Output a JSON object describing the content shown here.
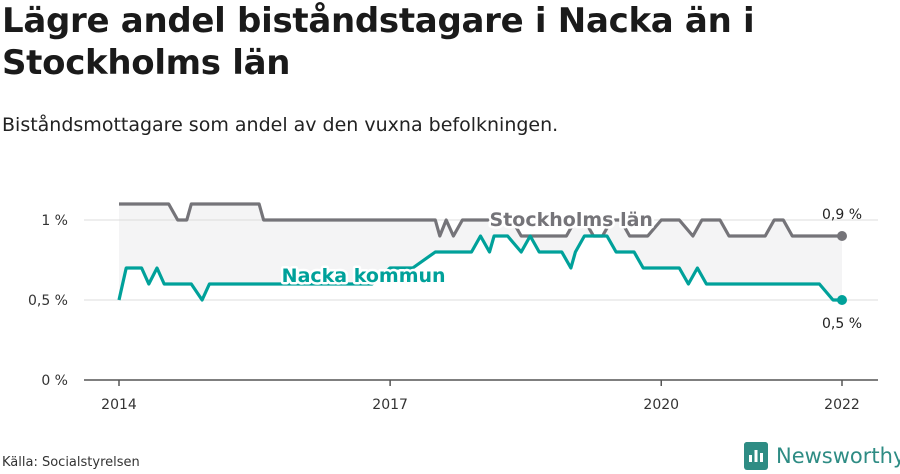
{
  "title": "Lägre andel biståndstagare i Nacka än i Stockholms län",
  "subtitle": "Biståndsmottagare som andel av den vuxna befolkningen.",
  "source": "Källa: Socialstyrelsen",
  "brand": {
    "name": "Newsworthy",
    "icon": "newsworthy-logo-icon",
    "color": "#2e8c84"
  },
  "chart_data": {
    "type": "line",
    "ylim": [
      0,
      1.25
    ],
    "xlim": [
      2014,
      2022.4
    ],
    "y_ticks": [
      {
        "value": 0,
        "label": "0 %"
      },
      {
        "value": 0.5,
        "label": "0,5 %"
      },
      {
        "value": 1.0,
        "label": "1 %"
      }
    ],
    "x_ticks": [
      {
        "value": 2014,
        "label": "2014"
      },
      {
        "value": 2017,
        "label": "2017"
      },
      {
        "value": 2020,
        "label": "2020"
      },
      {
        "value": 2022,
        "label": "2022"
      }
    ],
    "grid": true,
    "series": [
      {
        "name": "Stockholms län",
        "color": "#757479",
        "end_label": "0,9 %",
        "x": [
          2014.0,
          2014.2,
          2014.4,
          2014.55,
          2014.65,
          2014.75,
          2014.8,
          2014.95,
          2015.15,
          2015.35,
          2015.55,
          2015.6,
          2016.0,
          2016.5,
          2016.9,
          2016.95,
          2017.0,
          2017.2,
          2017.4,
          2017.5,
          2017.55,
          2017.62,
          2017.7,
          2017.8,
          2018.0,
          2018.2,
          2018.35,
          2018.45,
          2018.55,
          2018.7,
          2018.85,
          2018.95,
          2019.05,
          2019.15,
          2019.25,
          2019.35,
          2019.45,
          2019.55,
          2019.65,
          2019.75,
          2019.85,
          2020.0,
          2020.2,
          2020.35,
          2020.45,
          2020.65,
          2020.75,
          2021.0,
          2021.15,
          2021.25,
          2021.35,
          2021.45,
          2021.65,
          2022.0
        ],
        "values": [
          1.1,
          1.1,
          1.1,
          1.1,
          1.0,
          1.0,
          1.1,
          1.1,
          1.1,
          1.1,
          1.1,
          1.0,
          1.0,
          1.0,
          1.0,
          1.0,
          1.0,
          1.0,
          1.0,
          1.0,
          0.9,
          1.0,
          0.9,
          1.0,
          1.0,
          1.0,
          1.0,
          0.9,
          0.9,
          0.9,
          0.9,
          0.9,
          1.0,
          1.0,
          0.9,
          0.9,
          1.0,
          1.0,
          0.9,
          0.9,
          0.9,
          1.0,
          1.0,
          0.9,
          1.0,
          1.0,
          0.9,
          0.9,
          0.9,
          1.0,
          1.0,
          0.9,
          0.9,
          0.9
        ]
      },
      {
        "name": "Nacka kommun",
        "color": "#00a19a",
        "end_label": "0,5 %",
        "x": [
          2014.0,
          2014.08,
          2014.25,
          2014.33,
          2014.42,
          2014.5,
          2014.6,
          2014.8,
          2014.92,
          2015.0,
          2015.2,
          2015.6,
          2016.0,
          2016.4,
          2016.8,
          2017.0,
          2017.25,
          2017.5,
          2017.75,
          2017.9,
          2018.0,
          2018.1,
          2018.15,
          2018.25,
          2018.3,
          2018.45,
          2018.55,
          2018.65,
          2018.75,
          2018.9,
          2019.0,
          2019.05,
          2019.15,
          2019.25,
          2019.4,
          2019.5,
          2019.55,
          2019.7,
          2019.8,
          2019.95,
          2020.05,
          2020.2,
          2020.3,
          2020.4,
          2020.5,
          2020.6,
          2020.75,
          2021.0,
          2021.4,
          2021.75,
          2021.9,
          2022.0
        ],
        "values": [
          0.5,
          0.7,
          0.7,
          0.6,
          0.7,
          0.6,
          0.6,
          0.6,
          0.5,
          0.6,
          0.6,
          0.6,
          0.6,
          0.6,
          0.6,
          0.7,
          0.7,
          0.8,
          0.8,
          0.8,
          0.9,
          0.8,
          0.9,
          0.9,
          0.9,
          0.8,
          0.9,
          0.8,
          0.8,
          0.8,
          0.7,
          0.8,
          0.9,
          0.9,
          0.9,
          0.8,
          0.8,
          0.8,
          0.7,
          0.7,
          0.7,
          0.7,
          0.6,
          0.7,
          0.6,
          0.6,
          0.6,
          0.6,
          0.6,
          0.6,
          0.5,
          0.5
        ]
      }
    ]
  }
}
